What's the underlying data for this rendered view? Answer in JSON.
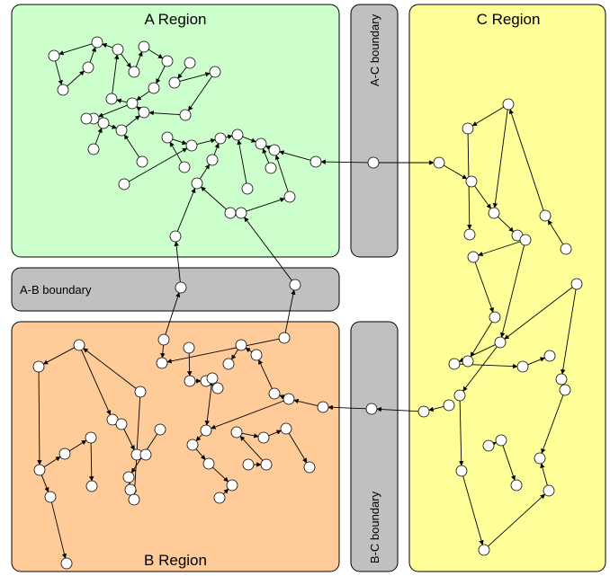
{
  "regions": {
    "a": {
      "label": "A Region",
      "color": "#ccffcc"
    },
    "b": {
      "label": "B Region",
      "color": "#ffcc99"
    },
    "c": {
      "label": "C Region",
      "color": "#ffff99"
    }
  },
  "boundaries": {
    "ab": {
      "label": "A-B boundary",
      "color": "#c0c0c0"
    },
    "ac": {
      "label": "A-C boundary",
      "color": "#c0c0c0"
    },
    "bc": {
      "label": "B-C boundary",
      "color": "#c0c0c0"
    }
  }
}
